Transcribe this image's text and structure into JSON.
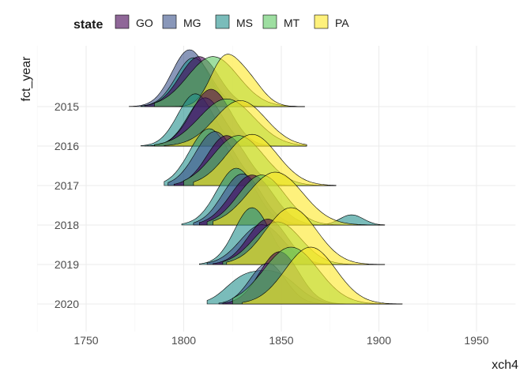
{
  "legend": {
    "title": "state"
  },
  "chart_data": {
    "type": "ridgeline",
    "xlabel": "xch4",
    "ylabel": "fct_year",
    "xlim": [
      1725,
      1970
    ],
    "x_ticks": [
      1750,
      1800,
      1850,
      1900,
      1950
    ],
    "categories": [
      "2015",
      "2016",
      "2017",
      "2018",
      "2019",
      "2020"
    ],
    "grid": true,
    "legend_position": "top",
    "fill_opacity": 0.6,
    "series": [
      {
        "name": "GO",
        "color": "#440154"
      },
      {
        "name": "MG",
        "color": "#3B528B"
      },
      {
        "name": "MS",
        "color": "#21908C"
      },
      {
        "name": "MT",
        "color": "#5DC863"
      },
      {
        "name": "PA",
        "color": "#FDE725"
      }
    ],
    "densities": [
      {
        "year": "2015",
        "state": "MG",
        "range": [
          1772,
          1862
        ],
        "peaks": [
          [
            1803,
            9,
            1.0
          ]
        ]
      },
      {
        "year": "2015",
        "state": "MS",
        "range": [
          1778,
          1862
        ],
        "peaks": [
          [
            1805,
            9,
            0.86
          ]
        ]
      },
      {
        "year": "2015",
        "state": "GO",
        "range": [
          1780,
          1862
        ],
        "peaks": [
          [
            1808,
            10,
            0.88
          ]
        ]
      },
      {
        "year": "2015",
        "state": "MT",
        "range": [
          1785,
          1862
        ],
        "peaks": [
          [
            1815,
            13,
            0.88
          ]
        ]
      },
      {
        "year": "2015",
        "state": "PA",
        "range": [
          1785,
          1862
        ],
        "peaks": [
          [
            1820,
            7,
            0.72
          ],
          [
            1832,
            8,
            0.5
          ]
        ]
      },
      {
        "year": "2016",
        "state": "MS",
        "range": [
          1778,
          1863
        ],
        "peaks": [
          [
            1806,
            9,
            0.92
          ]
        ]
      },
      {
        "year": "2016",
        "state": "MG",
        "range": [
          1780,
          1863
        ],
        "peaks": [
          [
            1811,
            9,
            0.85
          ]
        ]
      },
      {
        "year": "2016",
        "state": "GO",
        "range": [
          1785,
          1863
        ],
        "peaks": [
          [
            1814,
            10,
            1.0
          ]
        ]
      },
      {
        "year": "2016",
        "state": "MT",
        "range": [
          1785,
          1863
        ],
        "peaks": [
          [
            1822,
            14,
            0.83
          ]
        ]
      },
      {
        "year": "2016",
        "state": "PA",
        "range": [
          1790,
          1863
        ],
        "peaks": [
          [
            1829,
            13,
            0.8
          ]
        ]
      },
      {
        "year": "2017",
        "state": "MS",
        "range": [
          1790,
          1878
        ],
        "peaks": [
          [
            1813,
            10,
            1.0
          ]
        ]
      },
      {
        "year": "2017",
        "state": "MG",
        "range": [
          1792,
          1878
        ],
        "peaks": [
          [
            1816,
            10,
            0.95
          ]
        ]
      },
      {
        "year": "2017",
        "state": "GO",
        "range": [
          1795,
          1878
        ],
        "peaks": [
          [
            1822,
            10,
            0.88
          ]
        ]
      },
      {
        "year": "2017",
        "state": "MT",
        "range": [
          1800,
          1878
        ],
        "peaks": [
          [
            1828,
            13,
            0.88
          ]
        ]
      },
      {
        "year": "2017",
        "state": "PA",
        "range": [
          1805,
          1878
        ],
        "peaks": [
          [
            1835,
            13,
            0.9
          ]
        ]
      },
      {
        "year": "2018",
        "state": "MS",
        "range": [
          1799,
          1903
        ],
        "peaks": [
          [
            1827,
            10,
            1.0
          ],
          [
            1886,
            6,
            0.18
          ]
        ]
      },
      {
        "year": "2018",
        "state": "MG",
        "range": [
          1805,
          1903
        ],
        "peaks": [
          [
            1830,
            10,
            0.9
          ]
        ]
      },
      {
        "year": "2018",
        "state": "GO",
        "range": [
          1808,
          1903
        ],
        "peaks": [
          [
            1835,
            11,
            0.88
          ]
        ]
      },
      {
        "year": "2018",
        "state": "MT",
        "range": [
          1812,
          1903
        ],
        "peaks": [
          [
            1840,
            12,
            0.88
          ]
        ]
      },
      {
        "year": "2018",
        "state": "PA",
        "range": [
          1815,
          1903
        ],
        "peaks": [
          [
            1847,
            14,
            0.93
          ]
        ]
      },
      {
        "year": "2019",
        "state": "MS",
        "range": [
          1808,
          1903
        ],
        "peaks": [
          [
            1835,
            9,
            1.0
          ]
        ]
      },
      {
        "year": "2019",
        "state": "MG",
        "range": [
          1812,
          1903
        ],
        "peaks": [
          [
            1840,
            11,
            0.7
          ]
        ]
      },
      {
        "year": "2019",
        "state": "GO",
        "range": [
          1815,
          1903
        ],
        "peaks": [
          [
            1843,
            10,
            0.8
          ]
        ]
      },
      {
        "year": "2019",
        "state": "MT",
        "range": [
          1820,
          1903
        ],
        "peaks": [
          [
            1848,
            12,
            0.75
          ]
        ]
      },
      {
        "year": "2019",
        "state": "PA",
        "range": [
          1822,
          1903
        ],
        "peaks": [
          [
            1855,
            13,
            1.0
          ]
        ]
      },
      {
        "year": "2020",
        "state": "MS",
        "range": [
          1812,
          1912
        ],
        "peaks": [
          [
            1829,
            9,
            0.35
          ],
          [
            1847,
            11,
            0.52
          ]
        ]
      },
      {
        "year": "2020",
        "state": "MG",
        "range": [
          1818,
          1912
        ],
        "peaks": [
          [
            1843,
            9,
            0.72
          ]
        ]
      },
      {
        "year": "2020",
        "state": "GO",
        "range": [
          1820,
          1912
        ],
        "peaks": [
          [
            1849,
            10,
            0.92
          ]
        ]
      },
      {
        "year": "2020",
        "state": "MT",
        "range": [
          1825,
          1912
        ],
        "peaks": [
          [
            1855,
            14,
            1.0
          ]
        ]
      },
      {
        "year": "2020",
        "state": "PA",
        "range": [
          1830,
          1912
        ],
        "peaks": [
          [
            1865,
            13,
            1.0
          ]
        ]
      }
    ]
  }
}
